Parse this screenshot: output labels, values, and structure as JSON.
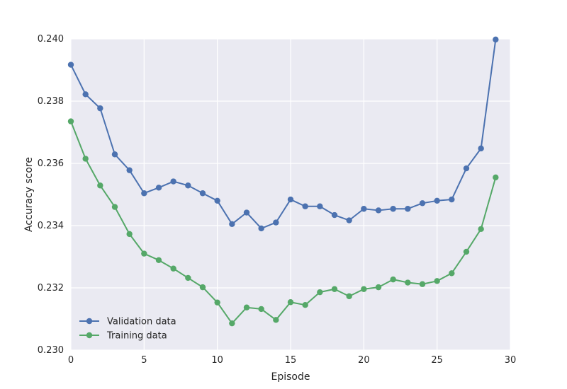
{
  "chart_data": {
    "type": "line",
    "xlabel": "Episode",
    "ylabel": "Accuracy score",
    "xlim": [
      0,
      30
    ],
    "ylim": [
      0.23,
      0.24
    ],
    "xticks": [
      0,
      5,
      10,
      15,
      20,
      25,
      30
    ],
    "xtick_labels": [
      "0",
      "5",
      "10",
      "15",
      "20",
      "25",
      "30"
    ],
    "yticks": [
      0.23,
      0.232,
      0.234,
      0.236,
      0.238,
      0.24
    ],
    "ytick_labels": [
      "0.230",
      "0.232",
      "0.234",
      "0.236",
      "0.238",
      "0.240"
    ],
    "grid": true,
    "legend_position": "lower-left",
    "x": [
      0,
      1,
      2,
      3,
      4,
      5,
      6,
      7,
      8,
      9,
      10,
      11,
      12,
      13,
      14,
      15,
      16,
      17,
      18,
      19,
      20,
      21,
      22,
      23,
      24,
      25,
      26,
      27,
      28,
      29
    ],
    "series": [
      {
        "name": "Validation data",
        "color": "#4c72b0",
        "values": [
          0.23917,
          0.23822,
          0.23777,
          0.23629,
          0.23578,
          0.23504,
          0.23522,
          0.23542,
          0.23529,
          0.23504,
          0.2348,
          0.23405,
          0.23442,
          0.23391,
          0.2341,
          0.23484,
          0.23462,
          0.23462,
          0.23434,
          0.23417,
          0.23454,
          0.23449,
          0.23454,
          0.23454,
          0.23472,
          0.2348,
          0.23484,
          0.23584,
          0.23648,
          0.23998
        ]
      },
      {
        "name": "Training data",
        "color": "#55a868",
        "values": [
          0.23735,
          0.23615,
          0.23529,
          0.2346,
          0.23373,
          0.2331,
          0.23289,
          0.23262,
          0.23232,
          0.23202,
          0.23153,
          0.23086,
          0.23137,
          0.23132,
          0.23097,
          0.23154,
          0.23145,
          0.23186,
          0.23196,
          0.23173,
          0.23196,
          0.23202,
          0.23227,
          0.23217,
          0.23212,
          0.23222,
          0.23247,
          0.23316,
          0.23389,
          0.23555
        ]
      }
    ]
  }
}
